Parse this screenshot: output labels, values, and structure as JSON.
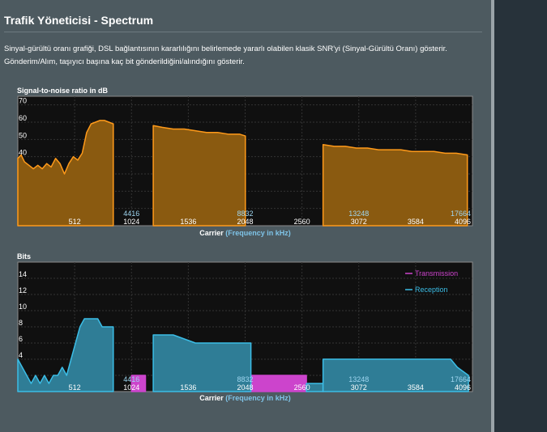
{
  "page": {
    "title": "Trafik Yöneticisi - Spectrum",
    "description": "Sinyal-gürültü oranı grafiği, DSL bağlantısının kararlılığını belirlemede yararlı olabilen klasik SNR'yi (Sinyal-Gürültü Oranı) gösterir. Gönderim/Alım, taşıyıcı başına kaç bit gönderildiğini/alındığını gösterir."
  },
  "colors": {
    "snr_fill": "#8a5a10",
    "snr_line": "#ff9a1a",
    "transmission": "#cc44cc",
    "reception": "#3bbde6",
    "reception_fill": "#2f7d96",
    "plot_bg": "#101010"
  },
  "xaxis": {
    "label_main": "Carrier",
    "label_paren_open": "(",
    "label_hz": "Frequency in kHz",
    "label_paren_close": ")",
    "carrier_ticks": [
      512,
      1024,
      1536,
      2048,
      2560,
      3072,
      3584,
      4096
    ],
    "khz_ticks": [
      {
        "carrier": 1024,
        "label": "4416"
      },
      {
        "carrier": 2048,
        "label": "8832"
      },
      {
        "carrier": 3072,
        "label": "13248"
      },
      {
        "carrier": 4096,
        "label": "17664"
      }
    ]
  },
  "chart_data": [
    {
      "id": "snr",
      "type": "area",
      "title": "Signal-to-noise ratio in dB",
      "xlim": [
        0,
        4096
      ],
      "ylim": [
        0,
        75
      ],
      "yticks": [
        0,
        10,
        20,
        30,
        40,
        50,
        60,
        70
      ],
      "segments": [
        {
          "x": [
            0,
            30,
            60,
            100,
            140,
            180,
            220,
            260,
            300,
            340,
            380,
            420,
            460,
            500,
            540,
            580,
            620,
            660,
            700,
            740,
            780,
            820,
            860
          ],
          "y": [
            39,
            41,
            37,
            35,
            33,
            35,
            33,
            36,
            34,
            39,
            36,
            30,
            36,
            40,
            38,
            42,
            54,
            59,
            60,
            61,
            61,
            60,
            59
          ]
        },
        {
          "x": [
            1220,
            1300,
            1400,
            1500,
            1600,
            1700,
            1800,
            1900,
            2000,
            2050
          ],
          "y": [
            58,
            57,
            56,
            56,
            55,
            54,
            54,
            53,
            53,
            52
          ]
        },
        {
          "x": [
            2750,
            2850,
            2950,
            3050,
            3150,
            3250,
            3350,
            3450,
            3550,
            3650,
            3750,
            3850,
            3950,
            4050
          ],
          "y": [
            47,
            46,
            46,
            45,
            45,
            44,
            44,
            44,
            43,
            43,
            43,
            42,
            42,
            41
          ]
        }
      ]
    },
    {
      "id": "bits",
      "type": "area",
      "title": "Bits",
      "xlim": [
        0,
        4096
      ],
      "ylim": [
        0,
        16
      ],
      "yticks": [
        0,
        2,
        4,
        6,
        8,
        10,
        12,
        14
      ],
      "legend": [
        "Transmission",
        "Reception"
      ],
      "legend_position": "top-right",
      "series": [
        {
          "name": "Transmission",
          "segments": [
            {
              "x": [
                1024,
                1150
              ],
              "y": [
                2,
                2
              ]
            },
            {
              "x": [
                2048,
                2600
              ],
              "y": [
                2,
                2
              ]
            }
          ]
        },
        {
          "name": "Reception",
          "segments": [
            {
              "x": [
                0,
                40,
                80,
                120,
                160,
                200,
                240,
                280,
                320,
                360,
                400,
                440,
                480,
                520,
                560,
                600,
                640,
                680,
                720,
                760,
                800,
                860
              ],
              "y": [
                4,
                3,
                2,
                1,
                2,
                1,
                2,
                1,
                2,
                2,
                3,
                2,
                4,
                6,
                8,
                9,
                9,
                9,
                9,
                8,
                8,
                8
              ]
            },
            {
              "x": [
                1220,
                1400,
                1600,
                1800,
                2000,
                2050,
                2100
              ],
              "y": [
                7,
                7,
                6,
                6,
                6,
                6,
                6
              ]
            },
            {
              "x": [
                2600,
                2750
              ],
              "y": [
                1,
                1
              ]
            },
            {
              "x": [
                2750,
                3000,
                3250,
                3500,
                3750,
                3900,
                3960,
                4060
              ],
              "y": [
                4,
                4,
                4,
                4,
                4,
                4,
                3,
                2
              ]
            }
          ]
        }
      ]
    }
  ]
}
